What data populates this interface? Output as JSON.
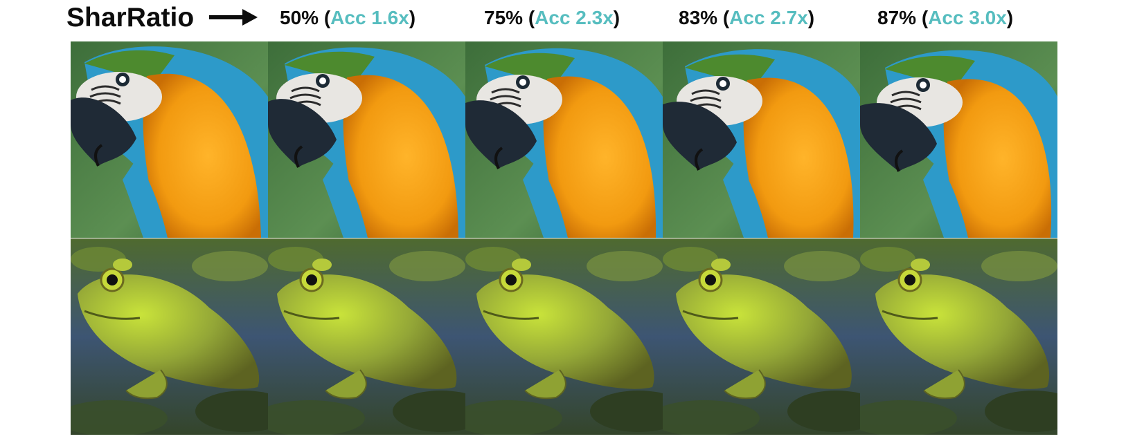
{
  "header": {
    "method_label": "SharRatio",
    "columns": [
      {
        "ratio": "50%",
        "open": "(",
        "acc": "Acc 1.6x",
        "close": ")"
      },
      {
        "ratio": "75%",
        "open": "(",
        "acc": "Acc 2.3x",
        "close": ")"
      },
      {
        "ratio": "83%",
        "open": "(",
        "acc": "Acc 2.7x",
        "close": ")"
      },
      {
        "ratio": "87%",
        "open": "(",
        "acc": "Acc 3.0x",
        "close": ")"
      }
    ]
  },
  "colors": {
    "acc_text": "#56bdbf",
    "label_text": "#0d0d0d"
  },
  "rows": [
    {
      "subject": "parrot-icon"
    },
    {
      "subject": "frog-icon"
    }
  ]
}
